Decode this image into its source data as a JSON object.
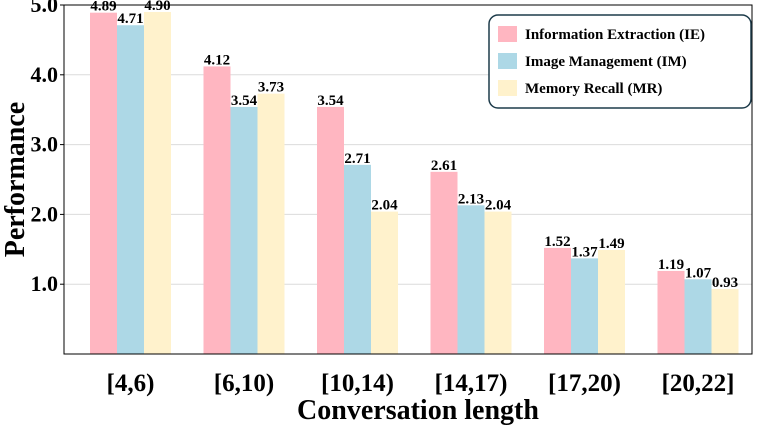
{
  "chart_data": {
    "type": "bar",
    "title": "",
    "xlabel": "Conversation length",
    "ylabel": "Performance",
    "categories": [
      "[4,6)",
      "[6,10)",
      "[10,14)",
      "[14,17)",
      "[17,20)",
      "[20,22]"
    ],
    "series": [
      {
        "name": "Information Extraction (IE)",
        "color": "#ffb6c1",
        "values": [
          4.89,
          4.12,
          3.54,
          2.61,
          1.52,
          1.19
        ]
      },
      {
        "name": "Image Management (IM)",
        "color": "#add8e6",
        "values": [
          4.71,
          3.54,
          2.71,
          2.13,
          1.37,
          1.07
        ]
      },
      {
        "name": "Memory Recall (MR)",
        "color": "#fff2cc",
        "values": [
          4.9,
          3.73,
          2.04,
          2.04,
          1.49,
          0.93
        ]
      }
    ],
    "data_labels": [
      [
        "4.89",
        "4.12",
        "3.54",
        "2.61",
        "1.52",
        "1.19"
      ],
      [
        "4.71",
        "3.54",
        "2.71",
        "2.13",
        "1.37",
        "1.07"
      ],
      [
        "4.90",
        "3.73",
        "2.04",
        "2.04",
        "1.49",
        "0.93"
      ]
    ],
    "yticks": [
      "1.0",
      "2.0",
      "3.0",
      "4.0",
      "5.0"
    ],
    "ylim": [
      0,
      5.0
    ],
    "grid": true,
    "legend_position": "top-right"
  }
}
